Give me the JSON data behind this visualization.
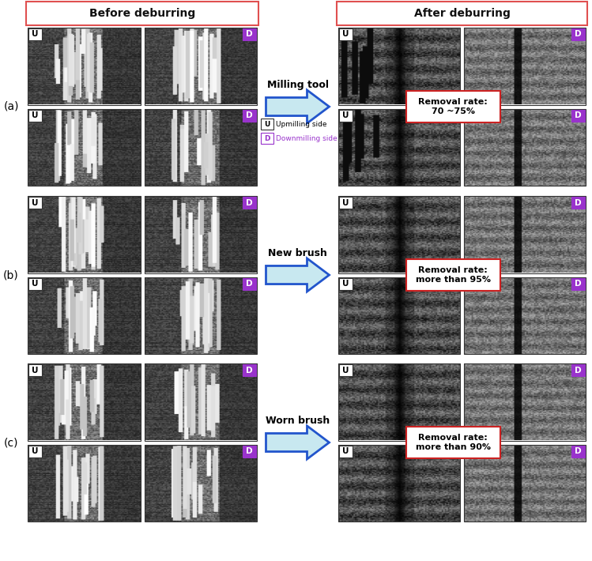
{
  "title_before": "Before deburring",
  "title_after": "After deburring",
  "row_labels": [
    "(a)",
    "(b)",
    "(c)"
  ],
  "tool_labels": [
    "Milling tool",
    "New brush",
    "Worn brush"
  ],
  "removal_rates": [
    "Removal rate:\n70 ~75%",
    "Removal rate:\nmore than 95%",
    "Removal rate:\nmore than 90%"
  ],
  "bg_color": "#ffffff",
  "header_border_color": "#e05050",
  "header_fill_color": "#ffffff",
  "label_u_bg": "#ffffff",
  "label_u_border": "#333333",
  "label_d_bg": "#9933cc",
  "label_d_border": "#9933cc",
  "arrow_fill": "#c8e8f0",
  "arrow_border": "#2255cc",
  "removal_border": "#cc2222",
  "removal_fill": "#ffffff",
  "legend_d_border": "#9933cc",
  "legend_d_text": "#9933cc"
}
